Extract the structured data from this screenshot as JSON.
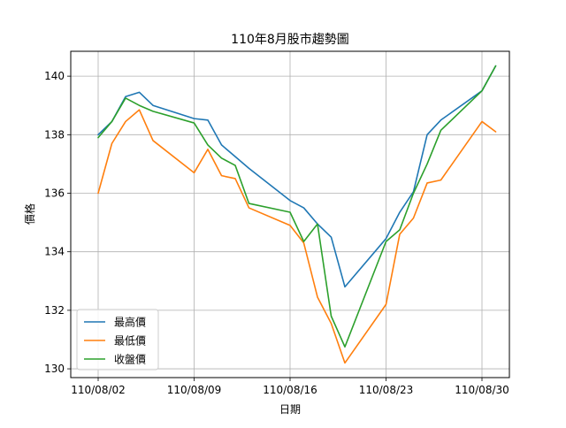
{
  "chart_data": {
    "type": "line",
    "title": "110年8月股市趨勢圖",
    "xlabel": "日期",
    "ylabel": "價格",
    "x": [
      "2021-08-02",
      "2021-08-03",
      "2021-08-04",
      "2021-08-05",
      "2021-08-06",
      "2021-08-09",
      "2021-08-10",
      "2021-08-11",
      "2021-08-12",
      "2021-08-13",
      "2021-08-16",
      "2021-08-17",
      "2021-08-18",
      "2021-08-19",
      "2021-08-20",
      "2021-08-23",
      "2021-08-24",
      "2021-08-25",
      "2021-08-26",
      "2021-08-27",
      "2021-08-30",
      "2021-08-31"
    ],
    "x_ticks": [
      "110/08/02",
      "110/08/09",
      "110/08/16",
      "110/08/23",
      "110/08/30"
    ],
    "xlim": [
      "2021-07-31",
      "2021-09-01"
    ],
    "ylim": [
      129.7,
      140.85
    ],
    "y_ticks": [
      130,
      132,
      134,
      136,
      138,
      140
    ],
    "grid": true,
    "legend_position": "lower-left",
    "series": [
      {
        "name": "最高價",
        "color": "#1f77b4",
        "values": [
          138.0,
          138.45,
          139.3,
          139.45,
          139.0,
          138.55,
          138.5,
          137.65,
          137.25,
          136.85,
          135.75,
          135.5,
          134.95,
          134.5,
          132.8,
          134.45,
          135.35,
          136.05,
          138.0,
          138.5,
          139.5,
          140.35
        ]
      },
      {
        "name": "最低價",
        "color": "#ff7f0e",
        "values": [
          136.0,
          137.7,
          138.45,
          138.85,
          137.8,
          136.7,
          137.5,
          136.6,
          136.5,
          135.5,
          134.9,
          134.3,
          132.45,
          131.55,
          130.2,
          132.2,
          134.6,
          135.15,
          136.35,
          136.45,
          138.45,
          138.1
        ]
      },
      {
        "name": "收盤價",
        "color": "#2ca02c",
        "values": [
          137.9,
          138.45,
          139.25,
          139.0,
          138.8,
          138.4,
          137.65,
          137.2,
          136.95,
          135.65,
          135.35,
          134.35,
          134.95,
          131.8,
          130.75,
          134.35,
          134.75,
          136.0,
          137.0,
          138.15,
          139.5,
          140.35
        ]
      }
    ]
  }
}
